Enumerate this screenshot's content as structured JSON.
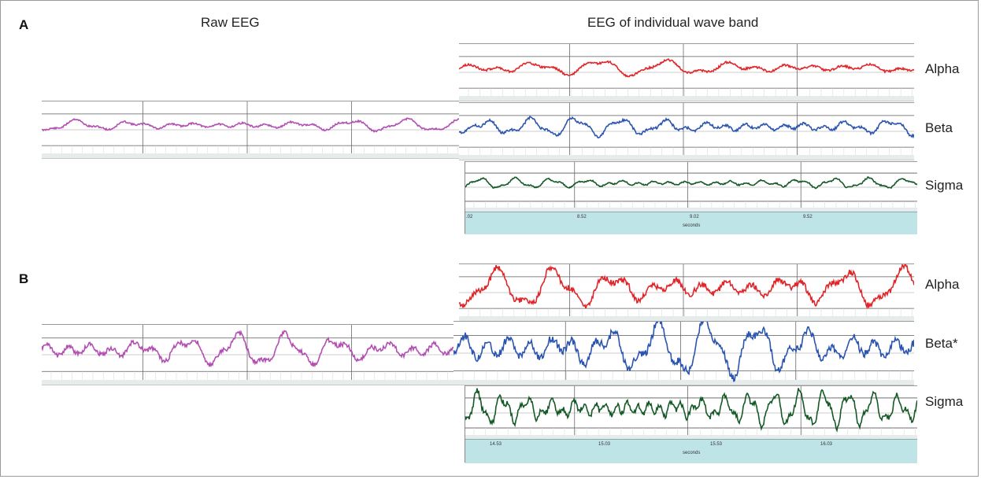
{
  "panels": [
    {
      "label": "A",
      "raw_heading": "Raw EEG",
      "band_heading": "EEG of individual wave band",
      "bands": [
        "Alpha",
        "Beta",
        "Sigma"
      ],
      "time_axis": {
        "ticks": [
          ".02",
          "8.52",
          "9.02",
          "9.52"
        ],
        "title": "seconds"
      }
    },
    {
      "label": "B",
      "bands": [
        "Alpha",
        "Beta*",
        "Sigma"
      ],
      "time_axis": {
        "ticks": [
          "14.53",
          "15.03",
          "15.53",
          "16.03"
        ],
        "title": "seconds"
      }
    }
  ],
  "colors": {
    "raw": "#b34fb3",
    "alpha": "#e0262a",
    "beta": "#2c55b0",
    "sigma": "#155a26",
    "axis_bar": "#bfe4e8"
  }
}
